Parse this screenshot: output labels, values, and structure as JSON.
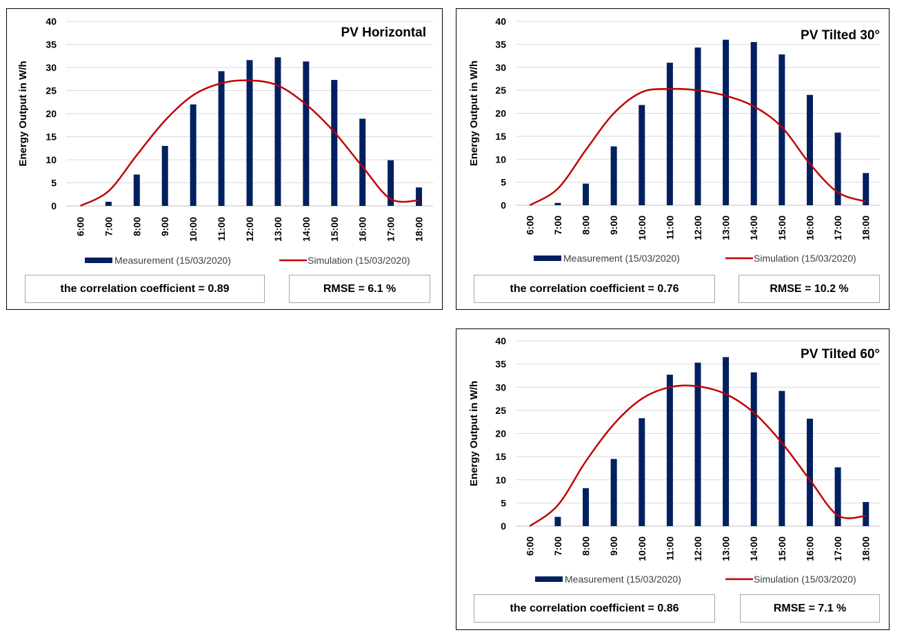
{
  "legend": {
    "measurement": "Measurement (15/03/2020)",
    "simulation": "Simulation (15/03/2020)"
  },
  "colors": {
    "bar": "#002060",
    "line": "#c00000",
    "grid": "#d9d9d9",
    "axis": "#bfbfbf"
  },
  "chart_data": [
    {
      "type": "bar",
      "title": "PV Horizontal",
      "ylabel": "Energy Output in W/h",
      "xlabel": "",
      "categories": [
        "6:00",
        "7:00",
        "8:00",
        "9:00",
        "10:00",
        "11:00",
        "12:00",
        "13:00",
        "14:00",
        "15:00",
        "16:00",
        "17:00",
        "18:00"
      ],
      "ylim": [
        0,
        40
      ],
      "yticks": [
        0,
        5,
        10,
        15,
        20,
        25,
        30,
        35,
        40
      ],
      "grid": true,
      "series": [
        {
          "name": "Measurement (15/03/2020)",
          "kind": "bar",
          "values": [
            0,
            0.9,
            6.8,
            13,
            22,
            29.2,
            31.6,
            32.2,
            31.3,
            27.3,
            18.9,
            9.9,
            4
          ]
        },
        {
          "name": "Simulation (15/03/2020)",
          "kind": "line",
          "values": [
            0,
            3.2,
            11,
            18.5,
            24,
            26.6,
            27.2,
            26.1,
            22,
            16,
            8.5,
            1.5,
            1.2
          ]
        }
      ],
      "stats": {
        "correlation_label": "the correlation coefficient = 0.89",
        "rmse_label": "RMSE = 6.1 %"
      }
    },
    {
      "type": "bar",
      "title": "PV Tilted 30°",
      "ylabel": "Energy Output in W/h",
      "xlabel": "",
      "categories": [
        "6:00",
        "7:00",
        "8:00",
        "9:00",
        "10:00",
        "11:00",
        "12:00",
        "13:00",
        "14:00",
        "15:00",
        "16:00",
        "17:00",
        "18:00"
      ],
      "ylim": [
        0,
        40
      ],
      "yticks": [
        0,
        5,
        10,
        15,
        20,
        25,
        30,
        35,
        40
      ],
      "grid": true,
      "series": [
        {
          "name": "Measurement (15/03/2020)",
          "kind": "bar",
          "values": [
            0,
            0.5,
            4.7,
            12.8,
            21.8,
            31,
            34.3,
            36,
            35.5,
            32.8,
            24,
            15.8,
            7
          ]
        },
        {
          "name": "Simulation (15/03/2020)",
          "kind": "line",
          "values": [
            0,
            3.6,
            12,
            20,
            24.6,
            25.3,
            25,
            23.8,
            21.5,
            17,
            9,
            2.8,
            0.8
          ]
        }
      ],
      "stats": {
        "correlation_label": "the correlation coefficient = 0.76",
        "rmse_label": "RMSE = 10.2 %"
      }
    },
    {
      "type": "bar",
      "title": "PV Tilted 60°",
      "ylabel": "Energy Output in W/h",
      "xlabel": "",
      "categories": [
        "6:00",
        "7:00",
        "8:00",
        "9:00",
        "10:00",
        "11:00",
        "12:00",
        "13:00",
        "14:00",
        "15:00",
        "16:00",
        "17:00",
        "18:00"
      ],
      "ylim": [
        0,
        40
      ],
      "yticks": [
        0,
        5,
        10,
        15,
        20,
        25,
        30,
        35,
        40
      ],
      "grid": true,
      "series": [
        {
          "name": "Measurement (15/03/2020)",
          "kind": "bar",
          "values": [
            0,
            2,
            8.2,
            14.5,
            23.3,
            32.7,
            35.3,
            36.5,
            33.2,
            29.2,
            23.2,
            12.7,
            5.2
          ]
        },
        {
          "name": "Simulation (15/03/2020)",
          "kind": "line",
          "values": [
            0,
            4.5,
            14,
            22,
            27.5,
            30,
            30.2,
            28.5,
            24.5,
            18,
            10,
            2.3,
            2.2
          ]
        }
      ],
      "stats": {
        "correlation_label": "the correlation coefficient = 0.86",
        "rmse_label": "RMSE = 7.1 %"
      }
    }
  ]
}
